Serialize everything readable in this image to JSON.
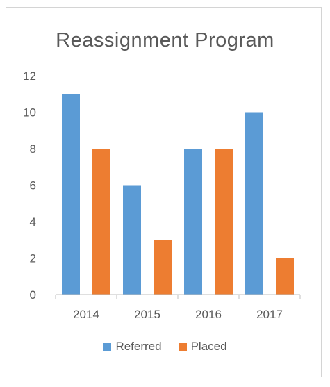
{
  "colors": {
    "referred": "#5b9bd5",
    "placed": "#ed7d31",
    "axis": "#bfbfbf",
    "text": "#595959"
  },
  "chart_data": {
    "type": "bar",
    "title": "Reassignment Program",
    "xlabel": "",
    "ylabel": "",
    "categories": [
      "2014",
      "2015",
      "2016",
      "2017"
    ],
    "series": [
      {
        "name": "Referred",
        "values": [
          11,
          6,
          8,
          10
        ]
      },
      {
        "name": "Placed",
        "values": [
          8,
          3,
          8,
          2
        ]
      }
    ],
    "ylim": [
      0,
      12
    ],
    "yticks": [
      "0",
      "2",
      "4",
      "6",
      "8",
      "10",
      "12"
    ],
    "grid": false,
    "legend_position": "bottom"
  }
}
